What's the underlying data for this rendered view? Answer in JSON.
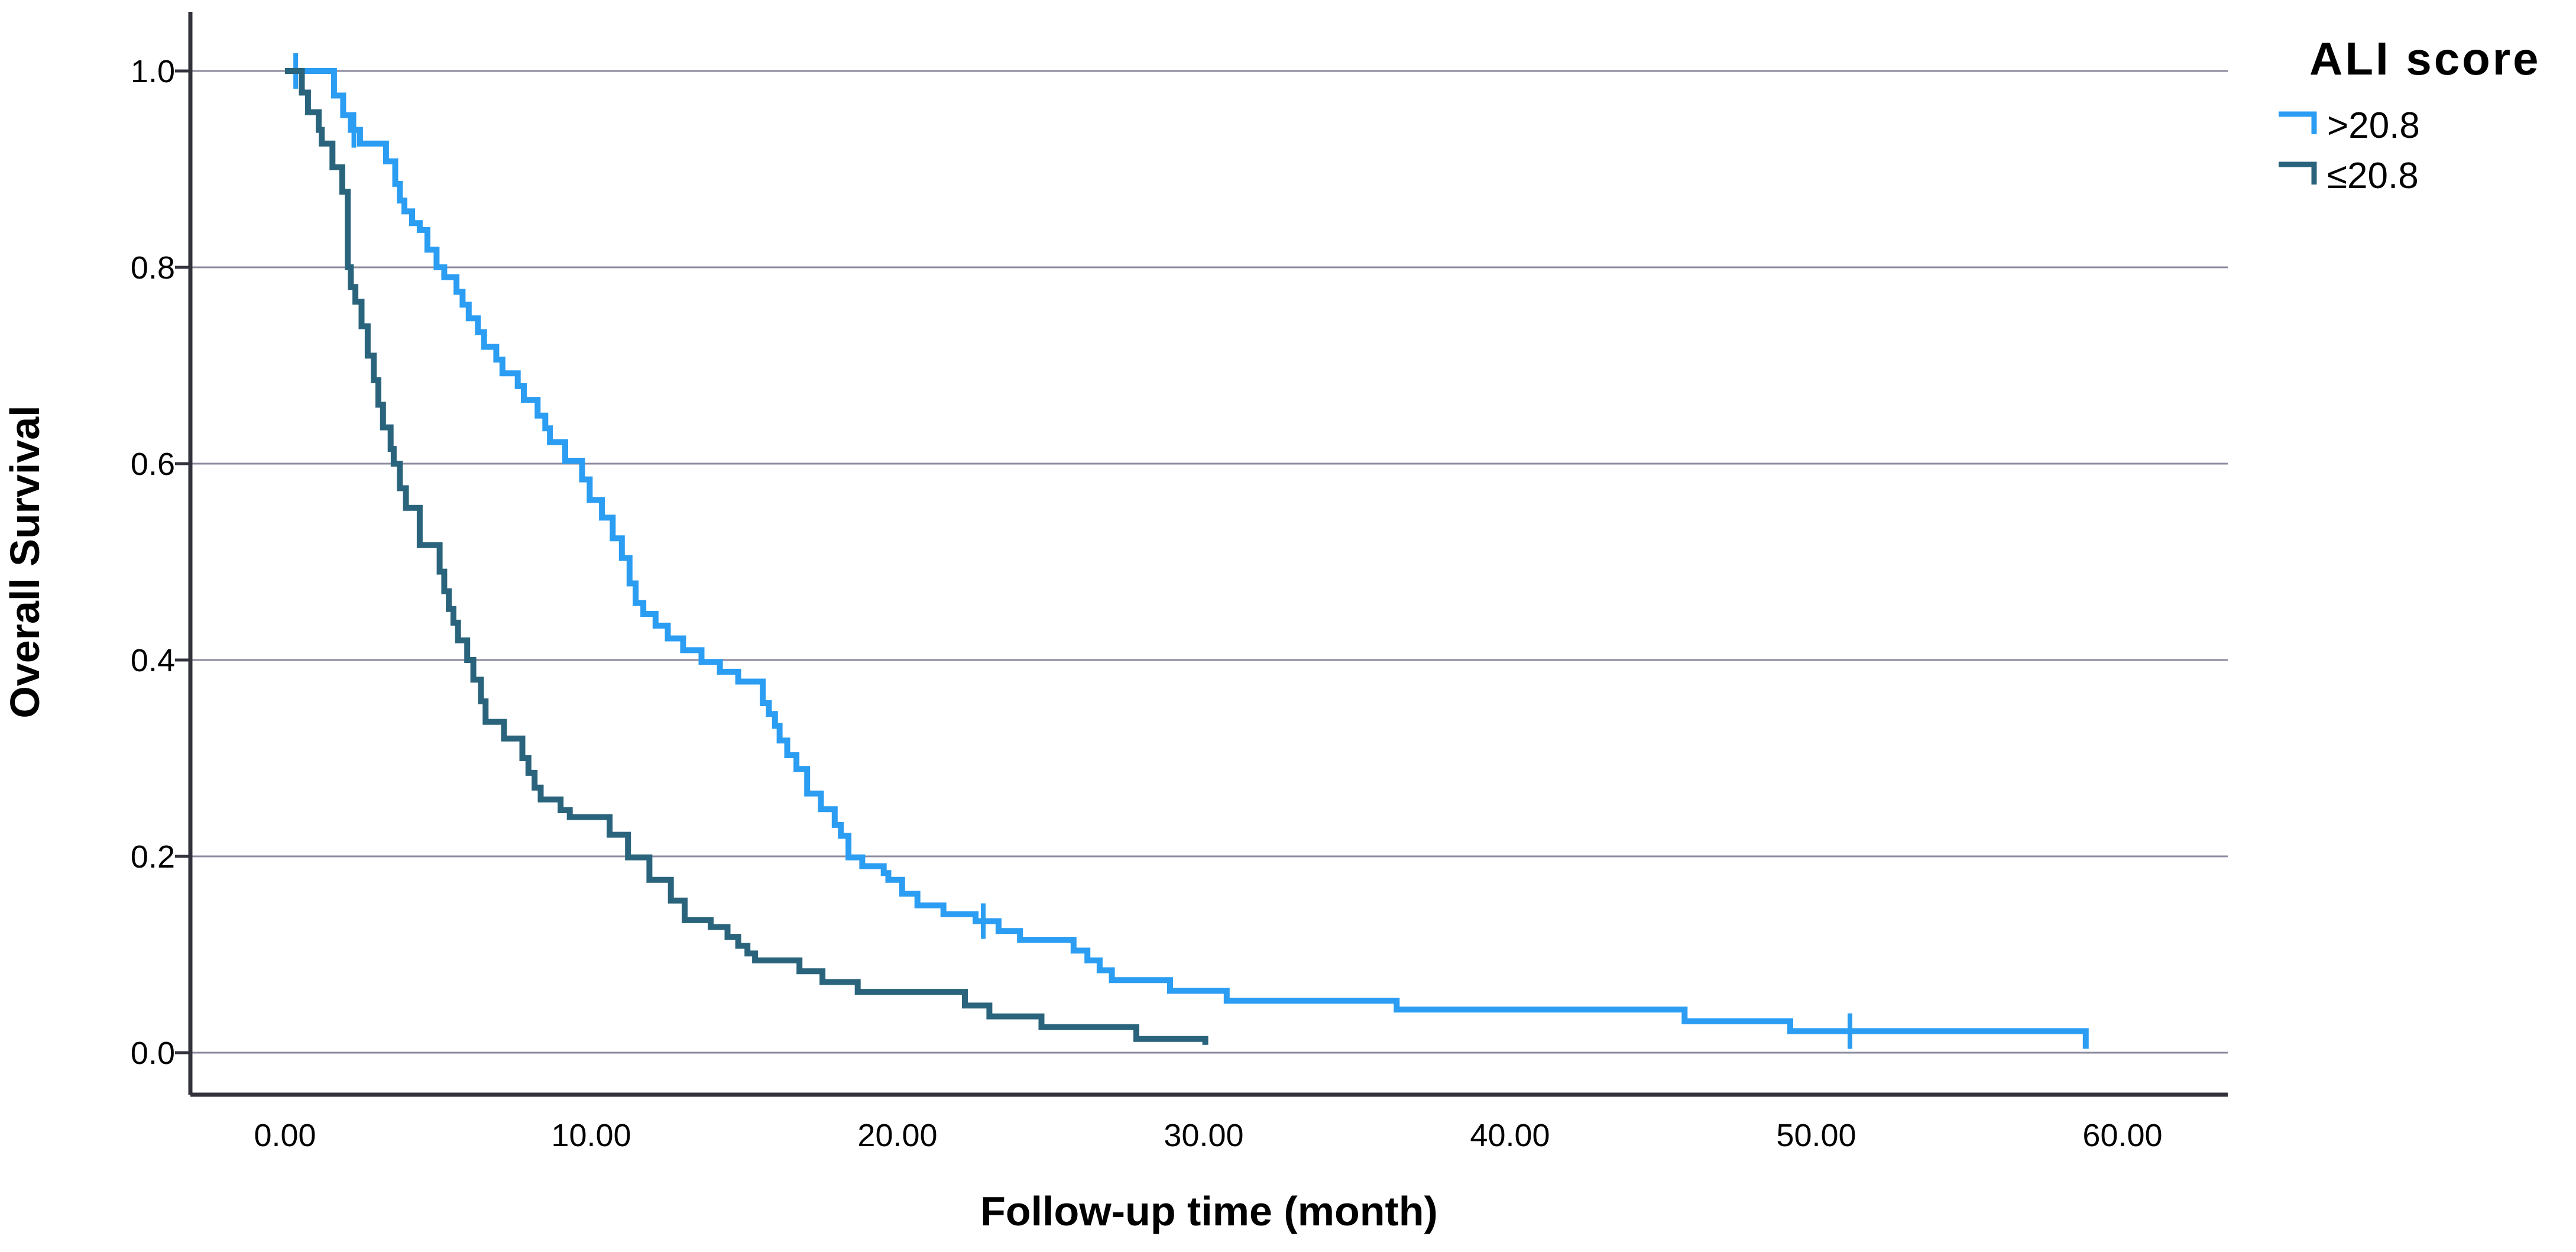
{
  "figure": {
    "background": "#ffffff",
    "kind": "Kaplan-Meier survival plot"
  },
  "chart_data": {
    "type": "line",
    "subtype": "kaplan-meier-step",
    "title": "",
    "xlabel": "Follow-up time (month)",
    "ylabel": "Overall Survival",
    "xlim": [
      0,
      60
    ],
    "ylim": [
      0.0,
      1.0
    ],
    "x_ticks": [
      0,
      10,
      20,
      30,
      40,
      50,
      60
    ],
    "x_tick_labels": [
      "0.00",
      "10.00",
      "20.00",
      "30.00",
      "40.00",
      "50.00",
      "60.00"
    ],
    "y_ticks": [
      1.0,
      0.8,
      0.6,
      0.4,
      0.2,
      0.0
    ],
    "y_tick_labels": [
      "1.0",
      "0.8",
      "0.6",
      "0.4",
      "0.2",
      "0.0"
    ],
    "grid": "horizontal",
    "gridline_color": "#8b8b9e",
    "axis_color": "#32323c",
    "legend": {
      "title": "ALI score",
      "position": "top-right",
      "entries": [
        {
          "label": ">20.8",
          "color": "#2b9df2"
        },
        {
          "label": "≤20.8",
          "color": "#2a647c"
        }
      ]
    },
    "series": [
      {
        "name": ">20.8",
        "color": "#2b9df2",
        "steps": [
          [
            0,
            1.0
          ],
          [
            1.6,
            0.975
          ],
          [
            1.9,
            0.955
          ],
          [
            2.15,
            0.94
          ],
          [
            2.45,
            0.926
          ],
          [
            3.3,
            0.908
          ],
          [
            3.6,
            0.885
          ],
          [
            3.75,
            0.868
          ],
          [
            3.9,
            0.857
          ],
          [
            4.15,
            0.845
          ],
          [
            4.4,
            0.838
          ],
          [
            4.65,
            0.818
          ],
          [
            4.95,
            0.8
          ],
          [
            5.2,
            0.79
          ],
          [
            5.6,
            0.775
          ],
          [
            5.8,
            0.762
          ],
          [
            6.0,
            0.748
          ],
          [
            6.3,
            0.734
          ],
          [
            6.5,
            0.719
          ],
          [
            6.9,
            0.706
          ],
          [
            7.1,
            0.692
          ],
          [
            7.6,
            0.679
          ],
          [
            7.8,
            0.665
          ],
          [
            8.25,
            0.649
          ],
          [
            8.5,
            0.636
          ],
          [
            8.65,
            0.622
          ],
          [
            9.15,
            0.603
          ],
          [
            9.7,
            0.584
          ],
          [
            9.95,
            0.563
          ],
          [
            10.35,
            0.545
          ],
          [
            10.7,
            0.524
          ],
          [
            11.0,
            0.504
          ],
          [
            11.25,
            0.478
          ],
          [
            11.45,
            0.458
          ],
          [
            11.7,
            0.447
          ],
          [
            12.1,
            0.435
          ],
          [
            12.5,
            0.422
          ],
          [
            13.0,
            0.41
          ],
          [
            13.6,
            0.398
          ],
          [
            14.2,
            0.388
          ],
          [
            14.8,
            0.378
          ],
          [
            15.6,
            0.356
          ],
          [
            15.8,
            0.345
          ],
          [
            16.0,
            0.333
          ],
          [
            16.15,
            0.318
          ],
          [
            16.4,
            0.303
          ],
          [
            16.7,
            0.289
          ],
          [
            17.05,
            0.264
          ],
          [
            17.5,
            0.248
          ],
          [
            17.95,
            0.232
          ],
          [
            18.15,
            0.221
          ],
          [
            18.4,
            0.199
          ],
          [
            18.85,
            0.19
          ],
          [
            19.55,
            0.183
          ],
          [
            19.7,
            0.176
          ],
          [
            20.15,
            0.162
          ],
          [
            20.65,
            0.15
          ],
          [
            21.5,
            0.141
          ],
          [
            22.55,
            0.134
          ],
          [
            23.3,
            0.124
          ],
          [
            24.0,
            0.115
          ],
          [
            25.75,
            0.104
          ],
          [
            26.2,
            0.094
          ],
          [
            26.6,
            0.084
          ],
          [
            27.0,
            0.074
          ],
          [
            28.9,
            0.063
          ],
          [
            30.75,
            0.053
          ],
          [
            36.3,
            0.044
          ],
          [
            45.7,
            0.032
          ],
          [
            49.15,
            0.022
          ],
          [
            58.8,
            0.004
          ]
        ],
        "censors": [
          [
            0.35,
            1.0
          ],
          [
            2.25,
            0.94
          ],
          [
            22.8,
            0.134
          ],
          [
            51.1,
            0.022
          ]
        ]
      },
      {
        "name": "≤20.8",
        "color": "#2a647c",
        "steps": [
          [
            0,
            1.0
          ],
          [
            0.55,
            0.978
          ],
          [
            0.75,
            0.958
          ],
          [
            1.1,
            0.94
          ],
          [
            1.2,
            0.926
          ],
          [
            1.55,
            0.902
          ],
          [
            1.87,
            0.877
          ],
          [
            2.05,
            0.8
          ],
          [
            2.15,
            0.78
          ],
          [
            2.3,
            0.765
          ],
          [
            2.5,
            0.74
          ],
          [
            2.7,
            0.71
          ],
          [
            2.9,
            0.685
          ],
          [
            3.05,
            0.66
          ],
          [
            3.2,
            0.637
          ],
          [
            3.45,
            0.615
          ],
          [
            3.55,
            0.6
          ],
          [
            3.75,
            0.575
          ],
          [
            3.95,
            0.555
          ],
          [
            4.4,
            0.517
          ],
          [
            5.05,
            0.49
          ],
          [
            5.2,
            0.47
          ],
          [
            5.35,
            0.452
          ],
          [
            5.5,
            0.438
          ],
          [
            5.65,
            0.42
          ],
          [
            5.95,
            0.4
          ],
          [
            6.15,
            0.38
          ],
          [
            6.4,
            0.358
          ],
          [
            6.55,
            0.337
          ],
          [
            7.15,
            0.32
          ],
          [
            7.75,
            0.3
          ],
          [
            7.95,
            0.285
          ],
          [
            8.15,
            0.27
          ],
          [
            8.35,
            0.258
          ],
          [
            9.0,
            0.247
          ],
          [
            9.3,
            0.24
          ],
          [
            10.6,
            0.222
          ],
          [
            11.2,
            0.199
          ],
          [
            11.9,
            0.176
          ],
          [
            12.6,
            0.155
          ],
          [
            13.05,
            0.135
          ],
          [
            13.9,
            0.128
          ],
          [
            14.45,
            0.118
          ],
          [
            14.8,
            0.109
          ],
          [
            15.1,
            0.101
          ],
          [
            15.35,
            0.094
          ],
          [
            16.8,
            0.083
          ],
          [
            17.55,
            0.072
          ],
          [
            18.7,
            0.062
          ],
          [
            22.2,
            0.048
          ],
          [
            23.0,
            0.037
          ],
          [
            24.7,
            0.026
          ],
          [
            27.8,
            0.014
          ],
          [
            30.05,
            0.008
          ]
        ],
        "censors": []
      }
    ]
  }
}
